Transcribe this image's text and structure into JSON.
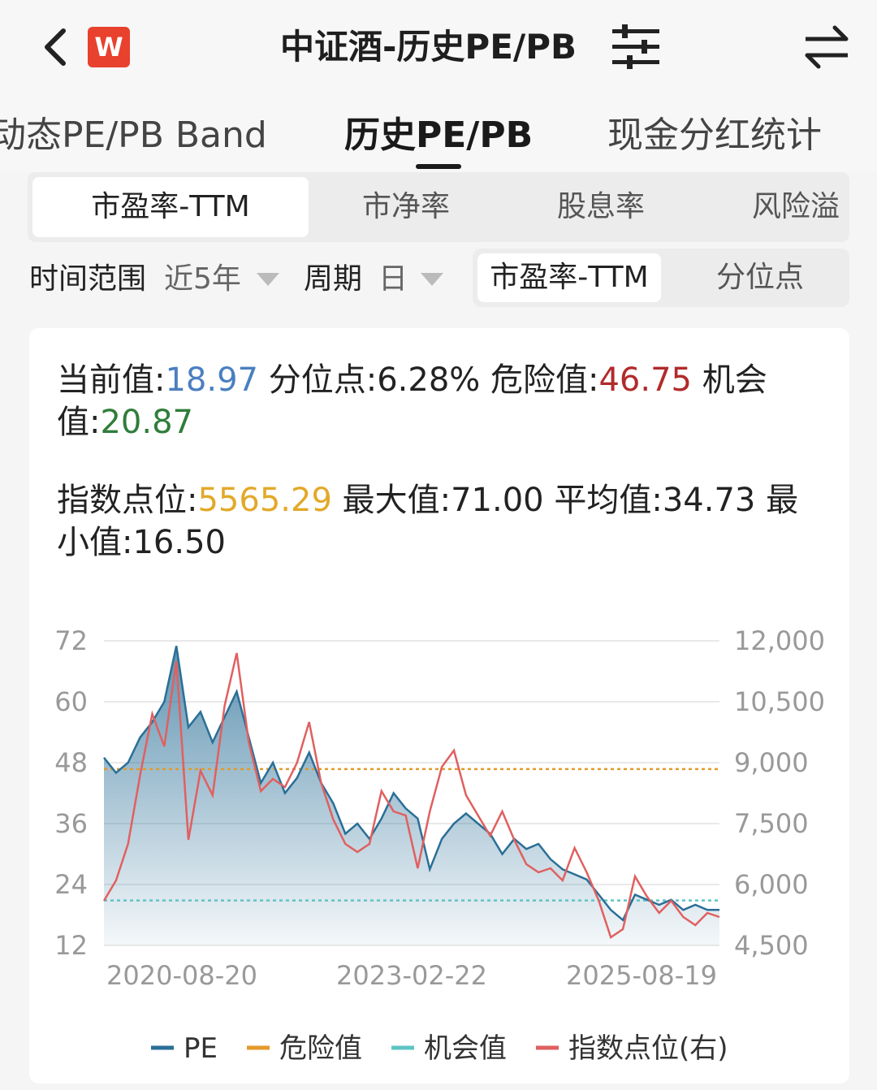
{
  "nav": {
    "logo_text": "W",
    "title": "中证酒-历史PE/PB",
    "icons": {
      "back": "chevron-left-icon",
      "filter": "sliders-icon",
      "swap": "swap-arrows-icon"
    }
  },
  "main_tabs": [
    {
      "label": "动态PE/PB Band"
    },
    {
      "label": "历史PE/PB",
      "active": true
    },
    {
      "label": "现金分红统计"
    }
  ],
  "sub_tabs": [
    {
      "label": "市盈率-TTM",
      "active": true
    },
    {
      "label": "市净率"
    },
    {
      "label": "股息率"
    },
    {
      "label": "风险溢"
    }
  ],
  "filters": {
    "range_label": "时间范围",
    "range_value": "近5年",
    "period_label": "周期",
    "period_value": "日",
    "toggle": [
      {
        "label": "市盈率-TTM",
        "active": true
      },
      {
        "label": "分位点"
      }
    ]
  },
  "stats": {
    "current_label": "当前值:",
    "current_value": "18.97",
    "percentile_label": "分位点:",
    "percentile_value": "6.28%",
    "danger_label": "危险值:",
    "danger_value": "46.75",
    "opportunity_label": "机会值:",
    "opportunity_value": "20.87",
    "index_label": "指数点位:",
    "index_value": "5565.29",
    "max_label": "最大值:",
    "max_value": "71.00",
    "avg_label": "平均值:",
    "avg_value": "34.73",
    "min_label": "最小值:",
    "min_value": "16.50"
  },
  "colors": {
    "pe": "#2a6f97",
    "danger": "#e39a2a",
    "opportunity": "#5fc4c4",
    "index": "#e06060"
  },
  "chart_data": {
    "type": "line",
    "x_ticks": [
      "2020-08-20",
      "2023-02-22",
      "2025-08-19"
    ],
    "y_left": {
      "ticks": [
        "72",
        "60",
        "48",
        "36",
        "24",
        "12"
      ],
      "range": [
        12,
        72
      ]
    },
    "y_right": {
      "ticks": [
        "12,000",
        "10,500",
        "9,000",
        "7,500",
        "6,000",
        "4,500"
      ],
      "range": [
        4500,
        12000
      ]
    },
    "reference_lines": [
      {
        "name": "危险值",
        "value": 46.75
      },
      {
        "name": "机会值",
        "value": 20.87
      }
    ],
    "series": [
      {
        "name": "PE",
        "axis": "left",
        "values": [
          49,
          46,
          48,
          53,
          56,
          60,
          71,
          55,
          58,
          52,
          57,
          62,
          53,
          44,
          48,
          42,
          45,
          50,
          44,
          40,
          34,
          36,
          33,
          37,
          42,
          39,
          37,
          27,
          33,
          36,
          38,
          36,
          34,
          30,
          33,
          31,
          32,
          29,
          27,
          26,
          25,
          22,
          19,
          17,
          22,
          21,
          20,
          21,
          19,
          20,
          19,
          19
        ]
      },
      {
        "name": "指数点位(右)",
        "axis": "right",
        "values": [
          5600,
          6100,
          7000,
          8700,
          10200,
          9400,
          11500,
          7100,
          8800,
          8200,
          10400,
          11700,
          9500,
          8300,
          8600,
          8400,
          9000,
          10000,
          8500,
          7600,
          7000,
          6800,
          7000,
          8300,
          7800,
          7700,
          6400,
          7800,
          8900,
          9300,
          8200,
          7700,
          7200,
          7800,
          7100,
          6500,
          6300,
          6400,
          6100,
          6900,
          6300,
          5600,
          4700,
          4900,
          6200,
          5700,
          5300,
          5600,
          5200,
          5000,
          5300,
          5200
        ]
      }
    ],
    "legend": [
      "PE",
      "危险值",
      "机会值",
      "指数点位(右)"
    ]
  }
}
